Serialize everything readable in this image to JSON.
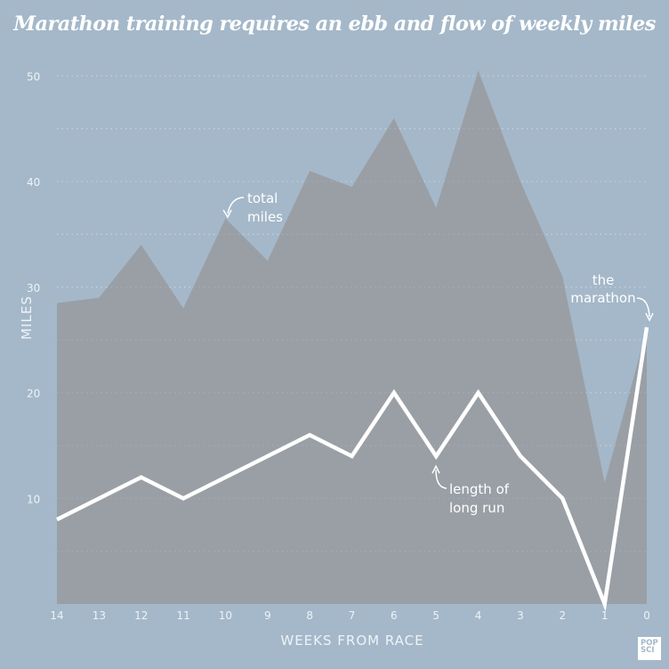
{
  "chart_data": {
    "type": "area",
    "title": "Marathon training requires an ebb and flow of weekly miles",
    "xlabel": "WEEKS FROM RACE",
    "ylabel": "MILES",
    "x": [
      14,
      13,
      12,
      11,
      10,
      9,
      8,
      7,
      6,
      5,
      4,
      3,
      2,
      1,
      0
    ],
    "xlim": [
      14,
      0
    ],
    "ylim": [
      0,
      50
    ],
    "yticks": [
      10,
      20,
      30,
      40,
      50
    ],
    "grid": true,
    "series": [
      {
        "name": "total miles",
        "type": "area",
        "color": "#9a9fa6",
        "values": [
          28.5,
          29,
          34,
          28,
          36.5,
          32.5,
          41,
          39.5,
          46,
          37.5,
          50.5,
          40,
          31,
          11.5,
          26
        ]
      },
      {
        "name": "length of long run",
        "type": "line",
        "color": "#ffffff",
        "values": [
          8,
          10,
          12,
          10,
          12,
          14,
          16,
          14,
          20,
          14,
          20,
          14,
          10,
          0,
          26.2
        ]
      }
    ],
    "annotations": [
      {
        "text": [
          "total",
          "miles"
        ],
        "x": 10,
        "y": 36.5
      },
      {
        "text": [
          "length of",
          "long run"
        ],
        "x": 5,
        "y": 14
      },
      {
        "text": [
          "the",
          "marathon"
        ],
        "x": 0,
        "y": 26.2
      }
    ]
  },
  "logo": "POP SCI",
  "colors": {
    "background": "#a4b8c9",
    "area": "#9a9fa6",
    "line": "#ffffff"
  }
}
